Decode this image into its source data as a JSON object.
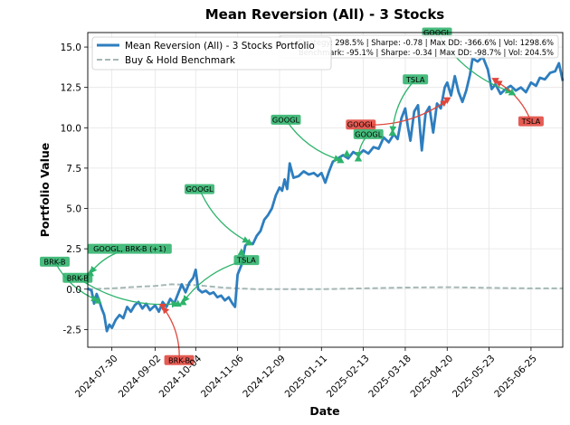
{
  "chart_data": {
    "type": "line",
    "title": "Mean Reversion (All) - 3 Stocks",
    "xlabel": "Date",
    "ylabel": "Portfolio Value",
    "xlim": [
      "2024-07-11",
      "2025-07-20"
    ],
    "ylim": [
      -3.6,
      15.9
    ],
    "grid": true,
    "legend": "upper left",
    "x_ticks": [
      "2024-07-30",
      "2024-09-02",
      "2024-10-04",
      "2024-11-06",
      "2024-12-09",
      "2025-01-11",
      "2025-02-13",
      "2025-03-18",
      "2025-04-20",
      "2025-05-23",
      "2025-06-25"
    ],
    "y_ticks": [
      -2.5,
      0.0,
      2.5,
      5.0,
      7.5,
      10.0,
      12.5,
      15.0
    ],
    "series": [
      {
        "name": "Mean Reversion (All) - 3 Stocks Portfolio",
        "color": "#2e7ebf",
        "points": [
          [
            "2024-07-11",
            0.05
          ],
          [
            "2024-07-14",
            -0.1
          ],
          [
            "2024-07-16",
            -0.9
          ],
          [
            "2024-07-18",
            -0.3
          ],
          [
            "2024-07-20",
            -0.7
          ],
          [
            "2024-07-22",
            -1.2
          ],
          [
            "2024-07-24",
            -1.6
          ],
          [
            "2024-07-26",
            -2.6
          ],
          [
            "2024-07-28",
            -2.2
          ],
          [
            "2024-07-30",
            -2.4
          ],
          [
            "2024-08-02",
            -1.9
          ],
          [
            "2024-08-05",
            -1.6
          ],
          [
            "2024-08-08",
            -1.8
          ],
          [
            "2024-08-11",
            -1.1
          ],
          [
            "2024-08-14",
            -1.4
          ],
          [
            "2024-08-17",
            -1.0
          ],
          [
            "2024-08-20",
            -0.8
          ],
          [
            "2024-08-23",
            -1.2
          ],
          [
            "2024-08-26",
            -0.9
          ],
          [
            "2024-08-29",
            -1.3
          ],
          [
            "2024-09-02",
            -1.0
          ],
          [
            "2024-09-05",
            -1.4
          ],
          [
            "2024-09-08",
            -0.8
          ],
          [
            "2024-09-11",
            -1.1
          ],
          [
            "2024-09-14",
            -0.6
          ],
          [
            "2024-09-17",
            -0.9
          ],
          [
            "2024-09-20",
            -0.3
          ],
          [
            "2024-09-23",
            0.3
          ],
          [
            "2024-09-26",
            -0.2
          ],
          [
            "2024-09-29",
            0.4
          ],
          [
            "2024-10-02",
            0.7
          ],
          [
            "2024-10-04",
            1.2
          ],
          [
            "2024-10-06",
            0.0
          ],
          [
            "2024-10-09",
            -0.2
          ],
          [
            "2024-10-12",
            -0.1
          ],
          [
            "2024-10-15",
            -0.3
          ],
          [
            "2024-10-18",
            -0.2
          ],
          [
            "2024-10-21",
            -0.5
          ],
          [
            "2024-10-24",
            -0.4
          ],
          [
            "2024-10-27",
            -0.7
          ],
          [
            "2024-10-30",
            -0.5
          ],
          [
            "2024-11-02",
            -0.9
          ],
          [
            "2024-11-04",
            -1.1
          ],
          [
            "2024-11-06",
            0.9
          ],
          [
            "2024-11-09",
            1.5
          ],
          [
            "2024-11-12",
            2.7
          ],
          [
            "2024-11-15",
            2.9
          ],
          [
            "2024-11-18",
            2.8
          ],
          [
            "2024-11-21",
            3.3
          ],
          [
            "2024-11-24",
            3.6
          ],
          [
            "2024-11-27",
            4.3
          ],
          [
            "2024-11-30",
            4.6
          ],
          [
            "2024-12-03",
            5.0
          ],
          [
            "2024-12-06",
            5.8
          ],
          [
            "2024-12-09",
            6.3
          ],
          [
            "2024-12-11",
            6.1
          ],
          [
            "2024-12-13",
            6.8
          ],
          [
            "2024-12-15",
            6.2
          ],
          [
            "2024-12-17",
            7.8
          ],
          [
            "2024-12-20",
            6.9
          ],
          [
            "2024-12-24",
            7.0
          ],
          [
            "2024-12-28",
            7.3
          ],
          [
            "2025-01-01",
            7.1
          ],
          [
            "2025-01-05",
            7.2
          ],
          [
            "2025-01-08",
            7.0
          ],
          [
            "2025-01-11",
            7.2
          ],
          [
            "2025-01-14",
            6.6
          ],
          [
            "2025-01-17",
            7.3
          ],
          [
            "2025-01-20",
            7.9
          ],
          [
            "2025-01-24",
            8.1
          ],
          [
            "2025-01-28",
            8.3
          ],
          [
            "2025-02-01",
            8.1
          ],
          [
            "2025-02-05",
            8.5
          ],
          [
            "2025-02-09",
            8.3
          ],
          [
            "2025-02-13",
            8.6
          ],
          [
            "2025-02-17",
            8.4
          ],
          [
            "2025-02-21",
            8.8
          ],
          [
            "2025-02-25",
            8.7
          ],
          [
            "2025-03-01",
            9.4
          ],
          [
            "2025-03-05",
            9.1
          ],
          [
            "2025-03-09",
            9.6
          ],
          [
            "2025-03-12",
            9.3
          ],
          [
            "2025-03-15",
            10.6
          ],
          [
            "2025-03-18",
            11.2
          ],
          [
            "2025-03-20",
            10.1
          ],
          [
            "2025-03-22",
            9.2
          ],
          [
            "2025-03-25",
            11.0
          ],
          [
            "2025-03-28",
            11.4
          ],
          [
            "2025-03-31",
            8.6
          ],
          [
            "2025-04-03",
            10.9
          ],
          [
            "2025-04-06",
            11.3
          ],
          [
            "2025-04-09",
            9.7
          ],
          [
            "2025-04-12",
            11.5
          ],
          [
            "2025-04-15",
            11.2
          ],
          [
            "2025-04-18",
            12.5
          ],
          [
            "2025-04-20",
            12.8
          ],
          [
            "2025-04-23",
            12.0
          ],
          [
            "2025-04-26",
            13.2
          ],
          [
            "2025-04-29",
            12.2
          ],
          [
            "2025-05-02",
            11.6
          ],
          [
            "2025-05-05",
            12.3
          ],
          [
            "2025-05-08",
            13.3
          ],
          [
            "2025-05-10",
            14.3
          ],
          [
            "2025-05-14",
            14.1
          ],
          [
            "2025-05-18",
            14.4
          ],
          [
            "2025-05-22",
            13.6
          ],
          [
            "2025-05-25",
            12.4
          ],
          [
            "2025-05-28",
            12.7
          ],
          [
            "2025-06-01",
            12.1
          ],
          [
            "2025-06-05",
            12.4
          ],
          [
            "2025-06-09",
            12.6
          ],
          [
            "2025-06-13",
            12.3
          ],
          [
            "2025-06-17",
            12.5
          ],
          [
            "2025-06-21",
            12.2
          ],
          [
            "2025-06-25",
            12.8
          ],
          [
            "2025-06-29",
            12.6
          ],
          [
            "2025-07-02",
            13.1
          ],
          [
            "2025-07-06",
            13.0
          ],
          [
            "2025-07-10",
            13.4
          ],
          [
            "2025-07-14",
            13.5
          ],
          [
            "2025-07-17",
            14.0
          ],
          [
            "2025-07-20",
            12.9
          ]
        ]
      },
      {
        "name": "Buy & Hold Benchmark",
        "color": "#a5b8b6",
        "points": [
          [
            "2024-07-11",
            0.0
          ],
          [
            "2024-07-30",
            0.05
          ],
          [
            "2024-08-20",
            0.15
          ],
          [
            "2024-09-02",
            0.2
          ],
          [
            "2024-09-15",
            0.3
          ],
          [
            "2024-10-04",
            0.25
          ],
          [
            "2024-10-25",
            0.1
          ],
          [
            "2024-11-06",
            0.05
          ],
          [
            "2024-11-20",
            0.0
          ],
          [
            "2024-12-09",
            0.0
          ],
          [
            "2025-01-11",
            0.0
          ],
          [
            "2025-02-13",
            0.05
          ],
          [
            "2025-03-18",
            0.1
          ],
          [
            "2025-04-20",
            0.12
          ],
          [
            "2025-05-23",
            0.08
          ],
          [
            "2025-06-25",
            0.05
          ],
          [
            "2025-07-20",
            0.05
          ]
        ]
      }
    ],
    "stats": [
      "Strategy: 298.5% | Sharpe: -0.78 | Max DD: -366.6% | Vol: 1298.6%",
      "Benchmark: -95.1% | Sharpe: -0.34 | Max DD: -98.7% | Vol: 204.5%"
    ],
    "markers": [
      {
        "date": "2024-07-13",
        "value": 1.0,
        "kind": "buy"
      },
      {
        "date": "2024-07-19",
        "value": -0.7,
        "kind": "buy"
      },
      {
        "date": "2024-09-08",
        "value": -1.1,
        "kind": "sell"
      },
      {
        "date": "2024-09-20",
        "value": -0.9,
        "kind": "buy"
      },
      {
        "date": "2024-09-24",
        "value": -0.8,
        "kind": "buy"
      },
      {
        "date": "2024-11-09",
        "value": 2.3,
        "kind": "buy"
      },
      {
        "date": "2024-11-15",
        "value": 2.9,
        "kind": "buy"
      },
      {
        "date": "2025-01-26",
        "value": 8.0,
        "kind": "buy"
      },
      {
        "date": "2025-01-31",
        "value": 8.4,
        "kind": "buy"
      },
      {
        "date": "2025-02-09",
        "value": 8.1,
        "kind": "buy"
      },
      {
        "date": "2025-03-08",
        "value": 9.7,
        "kind": "buy"
      },
      {
        "date": "2025-04-20",
        "value": 11.7,
        "kind": "sell"
      },
      {
        "date": "2025-05-28",
        "value": 12.9,
        "kind": "sell"
      },
      {
        "date": "2025-06-10",
        "value": 12.2,
        "kind": "buy"
      }
    ],
    "annotations": [
      {
        "text": "BRK-B",
        "color": "green",
        "label_date": "2024-06-15",
        "label_value": 1.7,
        "marker": 1
      },
      {
        "text": "BRK-B",
        "color": "green",
        "label_date": "2024-07-03",
        "label_value": 0.7,
        "marker": 3
      },
      {
        "text": "GOOGL, BRK-B (+1)",
        "color": "green",
        "label_date": "2024-08-13",
        "label_value": 2.5,
        "marker": 0
      },
      {
        "text": "BRK-B",
        "color": "red",
        "label_date": "2024-09-21",
        "label_value": -4.4,
        "marker": 2
      },
      {
        "text": "GOOGL",
        "color": "green",
        "label_date": "2024-10-07",
        "label_value": 6.2,
        "marker": 6
      },
      {
        "text": "TSLA",
        "color": "green",
        "label_date": "2024-11-13",
        "label_value": 1.8,
        "marker": 4
      },
      {
        "text": "GOOGL",
        "color": "green",
        "label_date": "2024-12-14",
        "label_value": 10.5,
        "marker": 7
      },
      {
        "text": "GOOGL",
        "color": "red",
        "label_date": "2025-02-11",
        "label_value": 10.2,
        "marker": 11
      },
      {
        "text": "GOOGL",
        "color": "green",
        "label_date": "2025-02-17",
        "label_value": 9.6,
        "marker": 9
      },
      {
        "text": "TSLA",
        "color": "green",
        "label_date": "2025-03-26",
        "label_value": 13.0,
        "marker": 10
      },
      {
        "text": "GOOGL",
        "color": "green",
        "label_date": "2025-04-12",
        "label_value": 15.9,
        "marker": 13
      },
      {
        "text": "TSLA",
        "color": "red",
        "label_date": "2025-06-25",
        "label_value": 10.4,
        "marker": 12
      }
    ]
  }
}
